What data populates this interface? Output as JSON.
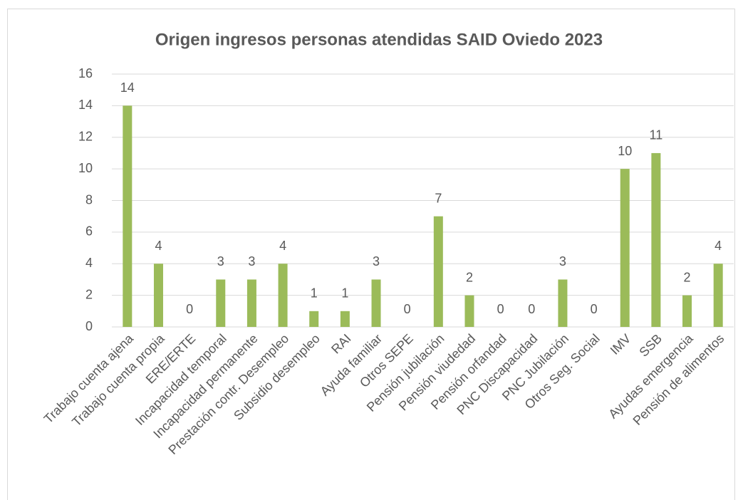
{
  "chart_data": {
    "type": "bar",
    "title": "Origen ingresos personas atendidas SAID Oviedo 2023",
    "categories": [
      "Trabajo cuenta ajena",
      "Trabajo cuenta propia",
      "ERE/ERTE",
      "Incapacidad temporal",
      "Incapacidad permanente",
      "Prestación contr. Desempleo",
      "Subsidio desempleo",
      "RAI",
      "Ayuda familiar",
      "Otros SEPE",
      "Pensión jubilación",
      "Pensión viudedad",
      "Pensión orfandad",
      "PNC Discapacidad",
      "PNC Jubilación",
      "Otros Seg. Social",
      "IMV",
      "SSB",
      "Ayudas emergencia",
      "Pensión de alimentos"
    ],
    "values": [
      14,
      4,
      0,
      3,
      3,
      4,
      1,
      1,
      3,
      0,
      7,
      2,
      0,
      0,
      3,
      0,
      10,
      11,
      2,
      4
    ],
    "color": "#9bbb59",
    "ylim": [
      0,
      16
    ],
    "yticks": [
      0,
      2,
      4,
      6,
      8,
      10,
      12,
      14,
      16
    ],
    "grid": true
  }
}
